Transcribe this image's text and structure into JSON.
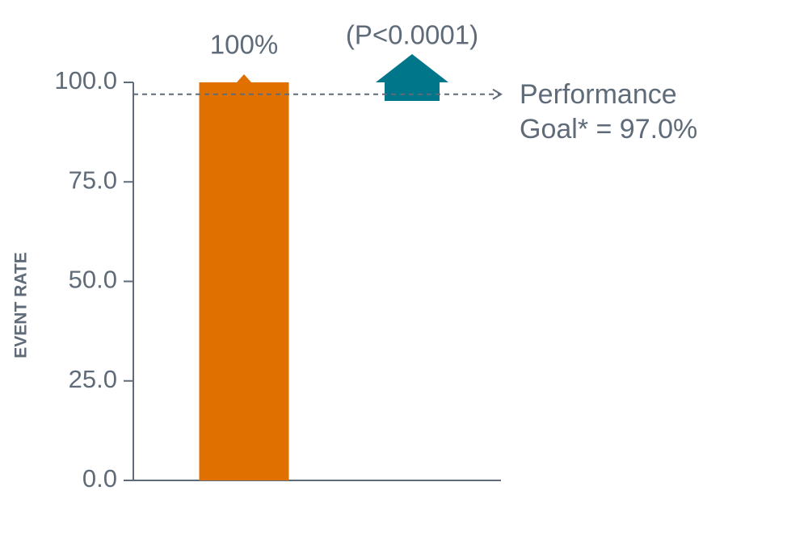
{
  "chart_data": {
    "type": "bar",
    "y_label": "EVENT RATE",
    "categories": [
      null
    ],
    "values": [
      100
    ],
    "value_labels": [
      "100%"
    ],
    "color": "#e07000",
    "ylim": [
      0,
      100
    ],
    "yticks": [
      {
        "value": 0,
        "label": "0.0"
      },
      {
        "value": 25,
        "label": "25.0"
      },
      {
        "value": 50,
        "label": "50.0"
      },
      {
        "value": 75,
        "label": "75.0"
      },
      {
        "value": 100,
        "label": "100.0"
      }
    ],
    "goal": {
      "value": 97,
      "label_lines": [
        "Performance",
        "Goal* = 97.0%"
      ]
    },
    "annotation": "(P<0.0001)",
    "annotation_color": "#00768a"
  }
}
